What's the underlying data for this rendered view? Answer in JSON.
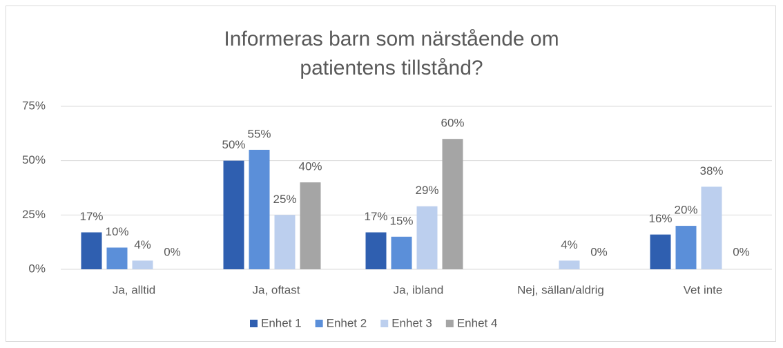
{
  "chart_data": {
    "type": "bar",
    "title": "Informeras barn som närstående om patientens tillstånd?",
    "categories": [
      "Ja, alltid",
      "Ja, oftast",
      "Ja, ibland",
      "Nej, sällan/aldrig",
      "Vet inte"
    ],
    "series": [
      {
        "name": "Enhet 1",
        "color": "#2f5fb0",
        "values": [
          17,
          50,
          17,
          null,
          16
        ],
        "value_labels": [
          "17%",
          "50%",
          "17%",
          null,
          "16%"
        ]
      },
      {
        "name": "Enhet 2",
        "color": "#5b8fd9",
        "values": [
          10,
          55,
          15,
          null,
          20
        ],
        "value_labels": [
          "10%",
          "55%",
          "15%",
          null,
          "20%"
        ]
      },
      {
        "name": "Enhet 3",
        "color": "#bccfee",
        "values": [
          4,
          25,
          29,
          4,
          38
        ],
        "value_labels": [
          "4%",
          "25%",
          "29%",
          "4%",
          "38%"
        ]
      },
      {
        "name": "Enhet 4",
        "color": "#a5a5a5",
        "values": [
          0,
          40,
          60,
          0,
          0
        ],
        "value_labels": [
          "0%",
          "40%",
          "60%",
          "0%",
          "0%"
        ]
      }
    ],
    "ylim": [
      0,
      75
    ],
    "yticks": [
      {
        "value": 0,
        "label": "0%"
      },
      {
        "value": 25,
        "label": "25%"
      },
      {
        "value": 50,
        "label": "50%"
      },
      {
        "value": 75,
        "label": "75%"
      }
    ],
    "grid": true,
    "legend": "bottom"
  }
}
